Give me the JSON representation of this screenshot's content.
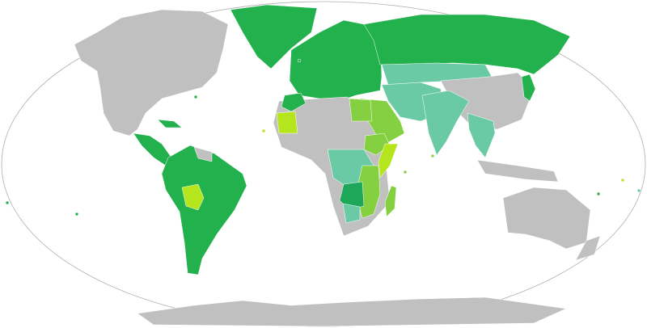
{
  "colors": {
    "background": "#ffffff",
    "no_data": "#c0c0c0",
    "dark_green": "#22b14c",
    "teal": "#6bcaa6",
    "light_green": "#85d040",
    "yellow_green": "#b5e61d",
    "mid_green": "#1ea659",
    "outline": "#b0b0b0"
  },
  "regions": {
    "north_america": "no_data",
    "greenland": "dark_green",
    "central_america": "dark_green",
    "caribbean": "dark_green",
    "south_america": "dark_green",
    "bolivia": "yellow_green",
    "europe": "dark_green",
    "russia": "dark_green",
    "central_asia": "teal",
    "china": "no_data",
    "iran": "teal",
    "arabia": "light_green",
    "india": "teal",
    "southeast_asia": "teal",
    "indonesia": "no_data",
    "japan": "dark_green",
    "australia": "no_data",
    "new_zealand": "no_data",
    "africa": "no_data",
    "egypt": "light_green",
    "mauritania": "yellow_green",
    "morocco": "dark_green",
    "ethiopia": "light_green",
    "somalia": "yellow_green",
    "central_africa": "teal",
    "east_africa": "light_green",
    "madagascar": "light_green",
    "zimbabwe": "mid_green",
    "southern_africa": "teal",
    "antarctica": "no_data"
  }
}
